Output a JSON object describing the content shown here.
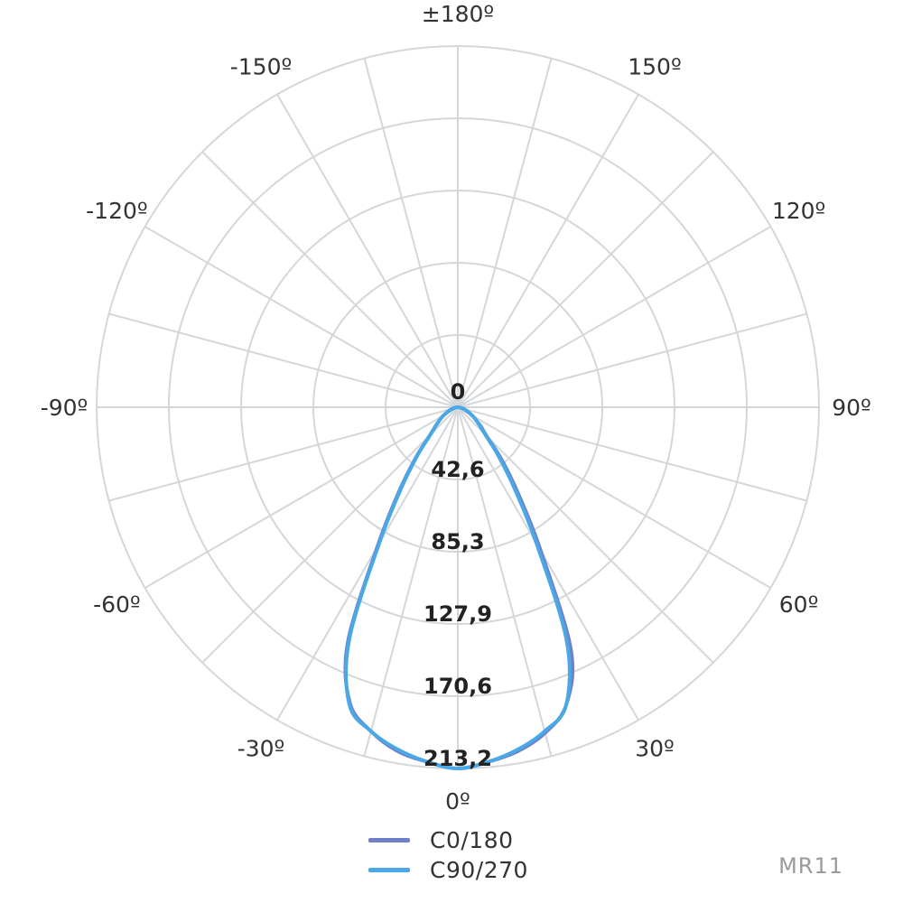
{
  "chart_data": {
    "type": "polar",
    "angle_labels": [
      "±180º",
      "150º",
      "120º",
      "90º",
      "60º",
      "30º",
      "0º",
      "-30º",
      "-60º",
      "-90º",
      "-120º",
      "-150º"
    ],
    "radial_labels": [
      "0",
      "42,6",
      "85,3",
      "127,9",
      "170,6",
      "213,2"
    ],
    "rlim": [
      0,
      213.2
    ],
    "grid": true,
    "series": [
      {
        "name": "C0/180",
        "color": "#6f7fc9",
        "angles_deg": [
          -90,
          -80,
          -70,
          -60,
          -55,
          -50,
          -45,
          -40,
          -35,
          -30,
          -25,
          -20,
          -15,
          -10,
          -5,
          0,
          5,
          10,
          15,
          20,
          25,
          30,
          35,
          40,
          45,
          50,
          55,
          60,
          70,
          80,
          90
        ],
        "values": [
          0,
          2,
          5,
          10,
          13,
          17,
          23,
          38,
          60,
          95,
          154,
          186,
          198,
          206,
          210,
          213.2,
          210,
          206,
          199,
          187,
          158,
          98,
          62,
          40,
          24,
          18,
          13,
          10,
          5,
          2,
          0
        ]
      },
      {
        "name": "C90/270",
        "color": "#4aa8e6",
        "angles_deg": [
          -90,
          -80,
          -70,
          -60,
          -55,
          -50,
          -45,
          -40,
          -35,
          -30,
          -25,
          -20,
          -15,
          -10,
          -5,
          0,
          5,
          10,
          15,
          20,
          25,
          30,
          35,
          40,
          45,
          50,
          55,
          60,
          70,
          80,
          90
        ],
        "values": [
          0,
          2,
          5,
          10,
          13,
          17,
          23,
          37,
          58,
          93,
          152,
          187,
          198,
          205,
          210,
          213.2,
          210,
          205,
          198,
          187,
          152,
          93,
          58,
          37,
          23,
          17,
          13,
          10,
          5,
          2,
          0
        ]
      }
    ],
    "legend_position": "bottom"
  },
  "watermark": "MR11"
}
